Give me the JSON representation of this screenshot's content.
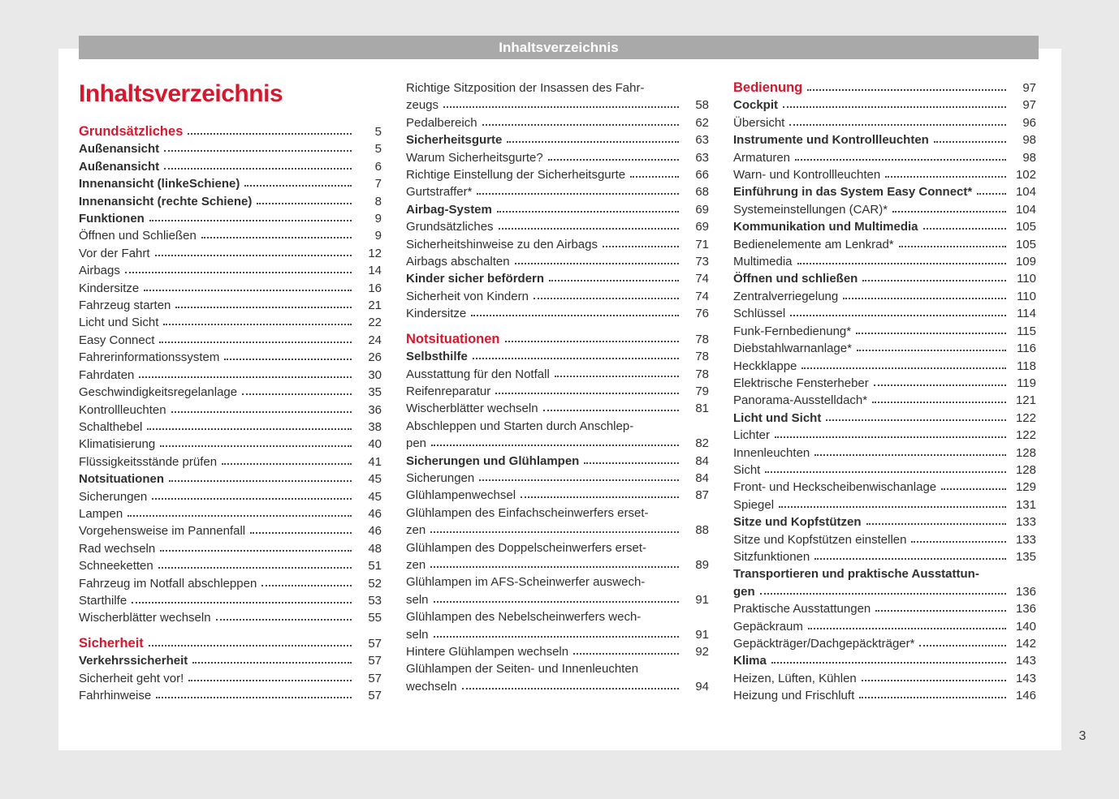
{
  "colors": {
    "accent_red": "#d6182f",
    "header_bar_gray": "#a9a9a9",
    "page_background": "#ffffff",
    "canvas_background": "#e9e9e9",
    "body_text": "#303030"
  },
  "header_bar": {
    "label": "Inhaltsverzeichnis"
  },
  "page": {
    "title": "Inhaltsverzeichnis",
    "corner_page_number": "3"
  },
  "toc": {
    "columns": [
      {
        "entries": [
          {
            "label": "Grundsätzliches",
            "page": "5",
            "style": "section"
          },
          {
            "label": "Außenansicht",
            "page": "5",
            "style": "bold"
          },
          {
            "label": "Außenansicht",
            "page": "6",
            "style": "bold"
          },
          {
            "label": "Innenansicht (linkeSchiene)",
            "page": "7",
            "style": "bold"
          },
          {
            "label": "Innenansicht (rechte Schiene)",
            "page": "8",
            "style": "bold"
          },
          {
            "label": "Funktionen",
            "page": "9",
            "style": "bold"
          },
          {
            "label": "Öffnen und Schließen",
            "page": "9",
            "style": "normal"
          },
          {
            "label": "Vor der Fahrt",
            "page": "12",
            "style": "normal"
          },
          {
            "label": "Airbags",
            "page": "14",
            "style": "normal"
          },
          {
            "label": "Kindersitze",
            "page": "16",
            "style": "normal"
          },
          {
            "label": "Fahrzeug starten",
            "page": "21",
            "style": "normal"
          },
          {
            "label": "Licht und Sicht",
            "page": "22",
            "style": "normal"
          },
          {
            "label": "Easy Connect",
            "page": "24",
            "style": "normal"
          },
          {
            "label": "Fahrerinformationssystem",
            "page": "26",
            "style": "normal"
          },
          {
            "label": "Fahrdaten",
            "page": "30",
            "style": "normal"
          },
          {
            "label": "Geschwindigkeitsregelanlage",
            "page": "35",
            "style": "normal"
          },
          {
            "label": "Kontrollleuchten",
            "page": "36",
            "style": "normal"
          },
          {
            "label": "Schalthebel",
            "page": "38",
            "style": "normal"
          },
          {
            "label": "Klimatisierung",
            "page": "40",
            "style": "normal"
          },
          {
            "label": "Flüssigkeitsstände prüfen",
            "page": "41",
            "style": "normal"
          },
          {
            "label": "Notsituationen",
            "page": "45",
            "style": "bold"
          },
          {
            "label": "Sicherungen",
            "page": "45",
            "style": "normal"
          },
          {
            "label": "Lampen",
            "page": "46",
            "style": "normal"
          },
          {
            "label": "Vorgehensweise im Pannenfall",
            "page": "46",
            "style": "normal"
          },
          {
            "label": "Rad wechseln",
            "page": "48",
            "style": "normal"
          },
          {
            "label": "Schneeketten",
            "page": "51",
            "style": "normal"
          },
          {
            "label": "Fahrzeug im Notfall abschleppen",
            "page": "52",
            "style": "normal"
          },
          {
            "label": "Starthilfe",
            "page": "53",
            "style": "normal"
          },
          {
            "label": "Wischerblätter wechseln",
            "page": "55",
            "style": "normal"
          },
          {
            "label": "Sicherheit",
            "page": "57",
            "style": "section",
            "gap": true
          },
          {
            "label": "Verkehrssicherheit",
            "page": "57",
            "style": "bold"
          },
          {
            "label": "Sicherheit geht vor!",
            "page": "57",
            "style": "normal"
          },
          {
            "label": "Fahrhinweise",
            "page": "57",
            "style": "normal"
          }
        ]
      },
      {
        "entries": [
          {
            "label": "Richtige Sitzposition der Insassen des Fahr-",
            "label2": "zeugs",
            "page": "58",
            "style": "normal"
          },
          {
            "label": "Pedalbereich",
            "page": "62",
            "style": "normal"
          },
          {
            "label": "Sicherheitsgurte",
            "page": "63",
            "style": "bold"
          },
          {
            "label": "Warum Sicherheitsgurte?",
            "page": "63",
            "style": "normal"
          },
          {
            "label": "Richtige Einstellung der Sicherheitsgurte",
            "page": "66",
            "style": "normal"
          },
          {
            "label": "Gurtstraffer*",
            "page": "68",
            "style": "normal"
          },
          {
            "label": "Airbag-System",
            "page": "69",
            "style": "bold"
          },
          {
            "label": "Grundsätzliches",
            "page": "69",
            "style": "normal"
          },
          {
            "label": "Sicherheitshinweise zu den Airbags",
            "page": "71",
            "style": "normal"
          },
          {
            "label": "Airbags abschalten",
            "page": "73",
            "style": "normal"
          },
          {
            "label": "Kinder sicher befördern",
            "page": "74",
            "style": "bold"
          },
          {
            "label": "Sicherheit von Kindern",
            "page": "74",
            "style": "normal"
          },
          {
            "label": "Kindersitze",
            "page": "76",
            "style": "normal"
          },
          {
            "label": "Notsituationen",
            "page": "78",
            "style": "section",
            "gap": true
          },
          {
            "label": "Selbsthilfe",
            "page": "78",
            "style": "bold"
          },
          {
            "label": "Ausstattung für den Notfall",
            "page": "78",
            "style": "normal"
          },
          {
            "label": "Reifenreparatur",
            "page": "79",
            "style": "normal"
          },
          {
            "label": "Wischerblätter wechseln",
            "page": "81",
            "style": "normal"
          },
          {
            "label": "Abschleppen und Starten durch Anschlep-",
            "label2": "pen",
            "page": "82",
            "style": "normal"
          },
          {
            "label": "Sicherungen und Glühlampen",
            "page": "84",
            "style": "bold"
          },
          {
            "label": "Sicherungen",
            "page": "84",
            "style": "normal"
          },
          {
            "label": "Glühlampenwechsel",
            "page": "87",
            "style": "normal"
          },
          {
            "label": "Glühlampen des Einfachscheinwerfers erset-",
            "label2": "zen",
            "page": "88",
            "style": "normal"
          },
          {
            "label": "Glühlampen des Doppelscheinwerfers erset-",
            "label2": "zen",
            "page": "89",
            "style": "normal"
          },
          {
            "label": "Glühlampen im AFS-Scheinwerfer auswech-",
            "label2": "seln",
            "page": "91",
            "style": "normal"
          },
          {
            "label": "Glühlampen des Nebelscheinwerfers wech-",
            "label2": "seln",
            "page": "91",
            "style": "normal"
          },
          {
            "label": "Hintere Glühlampen wechseln",
            "page": "92",
            "style": "normal"
          },
          {
            "label": "Glühlampen der Seiten- und Innenleuchten",
            "label2": "wechseln",
            "page": "94",
            "style": "normal"
          }
        ]
      },
      {
        "entries": [
          {
            "label": "Bedienung",
            "page": "97",
            "style": "section"
          },
          {
            "label": "Cockpit",
            "page": "97",
            "style": "bold"
          },
          {
            "label": "Übersicht",
            "page": "96",
            "style": "normal"
          },
          {
            "label": "Instrumente und Kontrollleuchten",
            "page": "98",
            "style": "bold"
          },
          {
            "label": "Armaturen",
            "page": "98",
            "style": "normal"
          },
          {
            "label": "Warn- und Kontrollleuchten",
            "page": "102",
            "style": "normal"
          },
          {
            "label": "Einführung in das System Easy Connect*",
            "page": "104",
            "style": "bold"
          },
          {
            "label": "Systemeinstellungen (CAR)*",
            "page": "104",
            "style": "normal"
          },
          {
            "label": "Kommunikation und Multimedia",
            "page": "105",
            "style": "bold"
          },
          {
            "label": "Bedienelemente am Lenkrad*",
            "page": "105",
            "style": "normal"
          },
          {
            "label": "Multimedia",
            "page": "109",
            "style": "normal"
          },
          {
            "label": "Öffnen und schließen",
            "page": "110",
            "style": "bold"
          },
          {
            "label": "Zentralverriegelung",
            "page": "110",
            "style": "normal"
          },
          {
            "label": "Schlüssel",
            "page": "114",
            "style": "normal"
          },
          {
            "label": "Funk-Fernbedienung*",
            "page": "115",
            "style": "normal"
          },
          {
            "label": "Diebstahlwarnanlage*",
            "page": "116",
            "style": "normal"
          },
          {
            "label": "Heckklappe",
            "page": "118",
            "style": "normal"
          },
          {
            "label": "Elektrische Fensterheber",
            "page": "119",
            "style": "normal"
          },
          {
            "label": "Panorama-Ausstelldach*",
            "page": "121",
            "style": "normal"
          },
          {
            "label": "Licht und Sicht",
            "page": "122",
            "style": "bold"
          },
          {
            "label": "Lichter",
            "page": "122",
            "style": "normal"
          },
          {
            "label": "Innenleuchten",
            "page": "128",
            "style": "normal"
          },
          {
            "label": "Sicht",
            "page": "128",
            "style": "normal"
          },
          {
            "label": "Front- und Heckscheibenwischanlage",
            "page": "129",
            "style": "normal"
          },
          {
            "label": "Spiegel",
            "page": "131",
            "style": "normal"
          },
          {
            "label": "Sitze und Kopfstützen",
            "page": "133",
            "style": "bold"
          },
          {
            "label": "Sitze und Kopfstützen einstellen",
            "page": "133",
            "style": "normal"
          },
          {
            "label": "Sitzfunktionen",
            "page": "135",
            "style": "normal"
          },
          {
            "label": "Transportieren und praktische Ausstattun-",
            "label2": "gen",
            "page": "136",
            "style": "bold"
          },
          {
            "label": "Praktische Ausstattungen",
            "page": "136",
            "style": "normal"
          },
          {
            "label": "Gepäckraum",
            "page": "140",
            "style": "normal"
          },
          {
            "label": "Gepäckträger/Dachgepäckträger*",
            "page": "142",
            "style": "normal"
          },
          {
            "label": "Klima",
            "page": "143",
            "style": "bold"
          },
          {
            "label": "Heizen, Lüften, Kühlen",
            "page": "143",
            "style": "normal"
          },
          {
            "label": "Heizung und Frischluft",
            "page": "146",
            "style": "normal"
          }
        ]
      }
    ]
  }
}
